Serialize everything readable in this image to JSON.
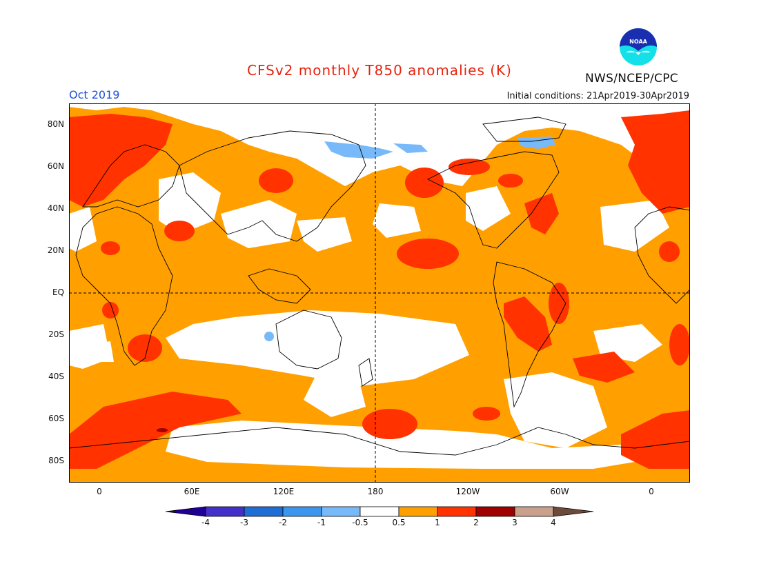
{
  "header": {
    "title": "CFSv2 monthly T850 anomalies (K)",
    "month": "Oct 2019",
    "initial_conditions": "Initial conditions: 21Apr2019-30Apr2019",
    "agency": "NWS/NCEP/CPC",
    "logo_text": "NOAA"
  },
  "map": {
    "projection": "equirectangular, central longitude 180",
    "lat_labels": [
      "80N",
      "60N",
      "40N",
      "20N",
      "EQ",
      "20S",
      "40S",
      "60S",
      "80S"
    ],
    "lon_labels": [
      "0",
      "60E",
      "120E",
      "180",
      "120W",
      "60W",
      "0"
    ]
  },
  "legend": {
    "colors": [
      "#1e0096",
      "#4230c9",
      "#1e6ed6",
      "#3c96f0",
      "#78b9fa",
      "#ffffff",
      "#ffa000",
      "#ff3200",
      "#a00000",
      "#c8a08c",
      "#6e4a3a"
    ],
    "labels": [
      "-4",
      "-3",
      "-2",
      "-1",
      "-0.5",
      "0.5",
      "1",
      "2",
      "3",
      "4"
    ]
  },
  "colors": {
    "title": "#e8230e",
    "month": "#1f4fd6",
    "anomaly_orange": "#ffa000",
    "anomaly_red": "#ff3200",
    "anomaly_lightblue": "#78b9fa",
    "anomaly_white": "#ffffff"
  }
}
